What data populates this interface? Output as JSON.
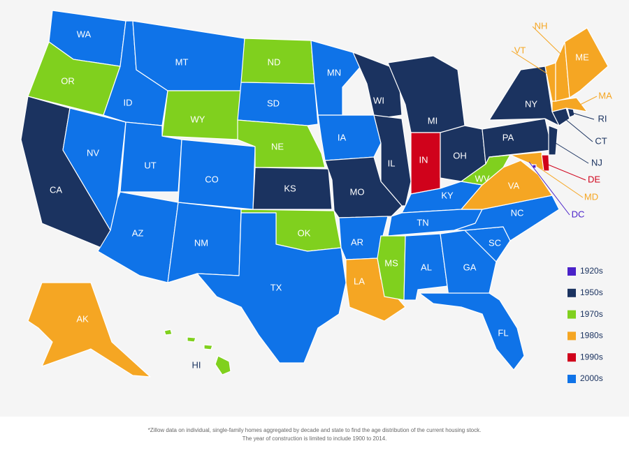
{
  "map": {
    "states": [
      {
        "label": "WA",
        "decade": "2000s"
      },
      {
        "label": "OR",
        "decade": "1970s"
      },
      {
        "label": "CA",
        "decade": "1950s"
      },
      {
        "label": "NV",
        "decade": "2000s"
      },
      {
        "label": "ID",
        "decade": "2000s"
      },
      {
        "label": "MT",
        "decade": "2000s"
      },
      {
        "label": "WY",
        "decade": "1970s"
      },
      {
        "label": "UT",
        "decade": "2000s"
      },
      {
        "label": "CO",
        "decade": "2000s"
      },
      {
        "label": "AZ",
        "decade": "2000s"
      },
      {
        "label": "NM",
        "decade": "2000s"
      },
      {
        "label": "ND",
        "decade": "1970s"
      },
      {
        "label": "SD",
        "decade": "2000s"
      },
      {
        "label": "NE",
        "decade": "1970s"
      },
      {
        "label": "KS",
        "decade": "1950s"
      },
      {
        "label": "OK",
        "decade": "1970s"
      },
      {
        "label": "TX",
        "decade": "2000s"
      },
      {
        "label": "MN",
        "decade": "2000s"
      },
      {
        "label": "IA",
        "decade": "2000s"
      },
      {
        "label": "MO",
        "decade": "1950s"
      },
      {
        "label": "AR",
        "decade": "2000s"
      },
      {
        "label": "LA",
        "decade": "1980s"
      },
      {
        "label": "WI",
        "decade": "1950s"
      },
      {
        "label": "IL",
        "decade": "1950s"
      },
      {
        "label": "MI",
        "decade": "1950s"
      },
      {
        "label": "IN",
        "decade": "1990s"
      },
      {
        "label": "OH",
        "decade": "1950s"
      },
      {
        "label": "KY",
        "decade": "2000s"
      },
      {
        "label": "TN",
        "decade": "2000s"
      },
      {
        "label": "MS",
        "decade": "1970s"
      },
      {
        "label": "AL",
        "decade": "2000s"
      },
      {
        "label": "GA",
        "decade": "2000s"
      },
      {
        "label": "FL",
        "decade": "2000s"
      },
      {
        "label": "SC",
        "decade": "2000s"
      },
      {
        "label": "NC",
        "decade": "2000s"
      },
      {
        "label": "VA",
        "decade": "1980s"
      },
      {
        "label": "WV",
        "decade": "1970s"
      },
      {
        "label": "PA",
        "decade": "1950s"
      },
      {
        "label": "NY",
        "decade": "1950s"
      },
      {
        "label": "MD",
        "decade": "1980s"
      },
      {
        "label": "DE",
        "decade": "1990s"
      },
      {
        "label": "NJ",
        "decade": "1950s"
      },
      {
        "label": "CT",
        "decade": "1950s"
      },
      {
        "label": "RI",
        "decade": "1950s"
      },
      {
        "label": "MA",
        "decade": "1980s"
      },
      {
        "label": "VT",
        "decade": "1980s"
      },
      {
        "label": "NH",
        "decade": "1980s"
      },
      {
        "label": "ME",
        "decade": "1980s"
      },
      {
        "label": "AK",
        "decade": "1980s"
      },
      {
        "label": "HI",
        "decade": "1970s"
      },
      {
        "label": "DC",
        "decade": "1920s"
      }
    ]
  },
  "legend": {
    "items": [
      {
        "label": "1920s",
        "color": "#4a22c9"
      },
      {
        "label": "1950s",
        "color": "#1b3360"
      },
      {
        "label": "1970s",
        "color": "#80d01e"
      },
      {
        "label": "1980s",
        "color": "#f5a623"
      },
      {
        "label": "1990s",
        "color": "#d0021b"
      },
      {
        "label": "2000s",
        "color": "#0f73e8"
      }
    ]
  },
  "footnote": {
    "lines": [
      "*Zillow data on individual, single-family homes aggregated by decade and state to find the age distribution of the current housing stock.",
      "The year of construction is limited to include 1900 to 2014."
    ]
  }
}
